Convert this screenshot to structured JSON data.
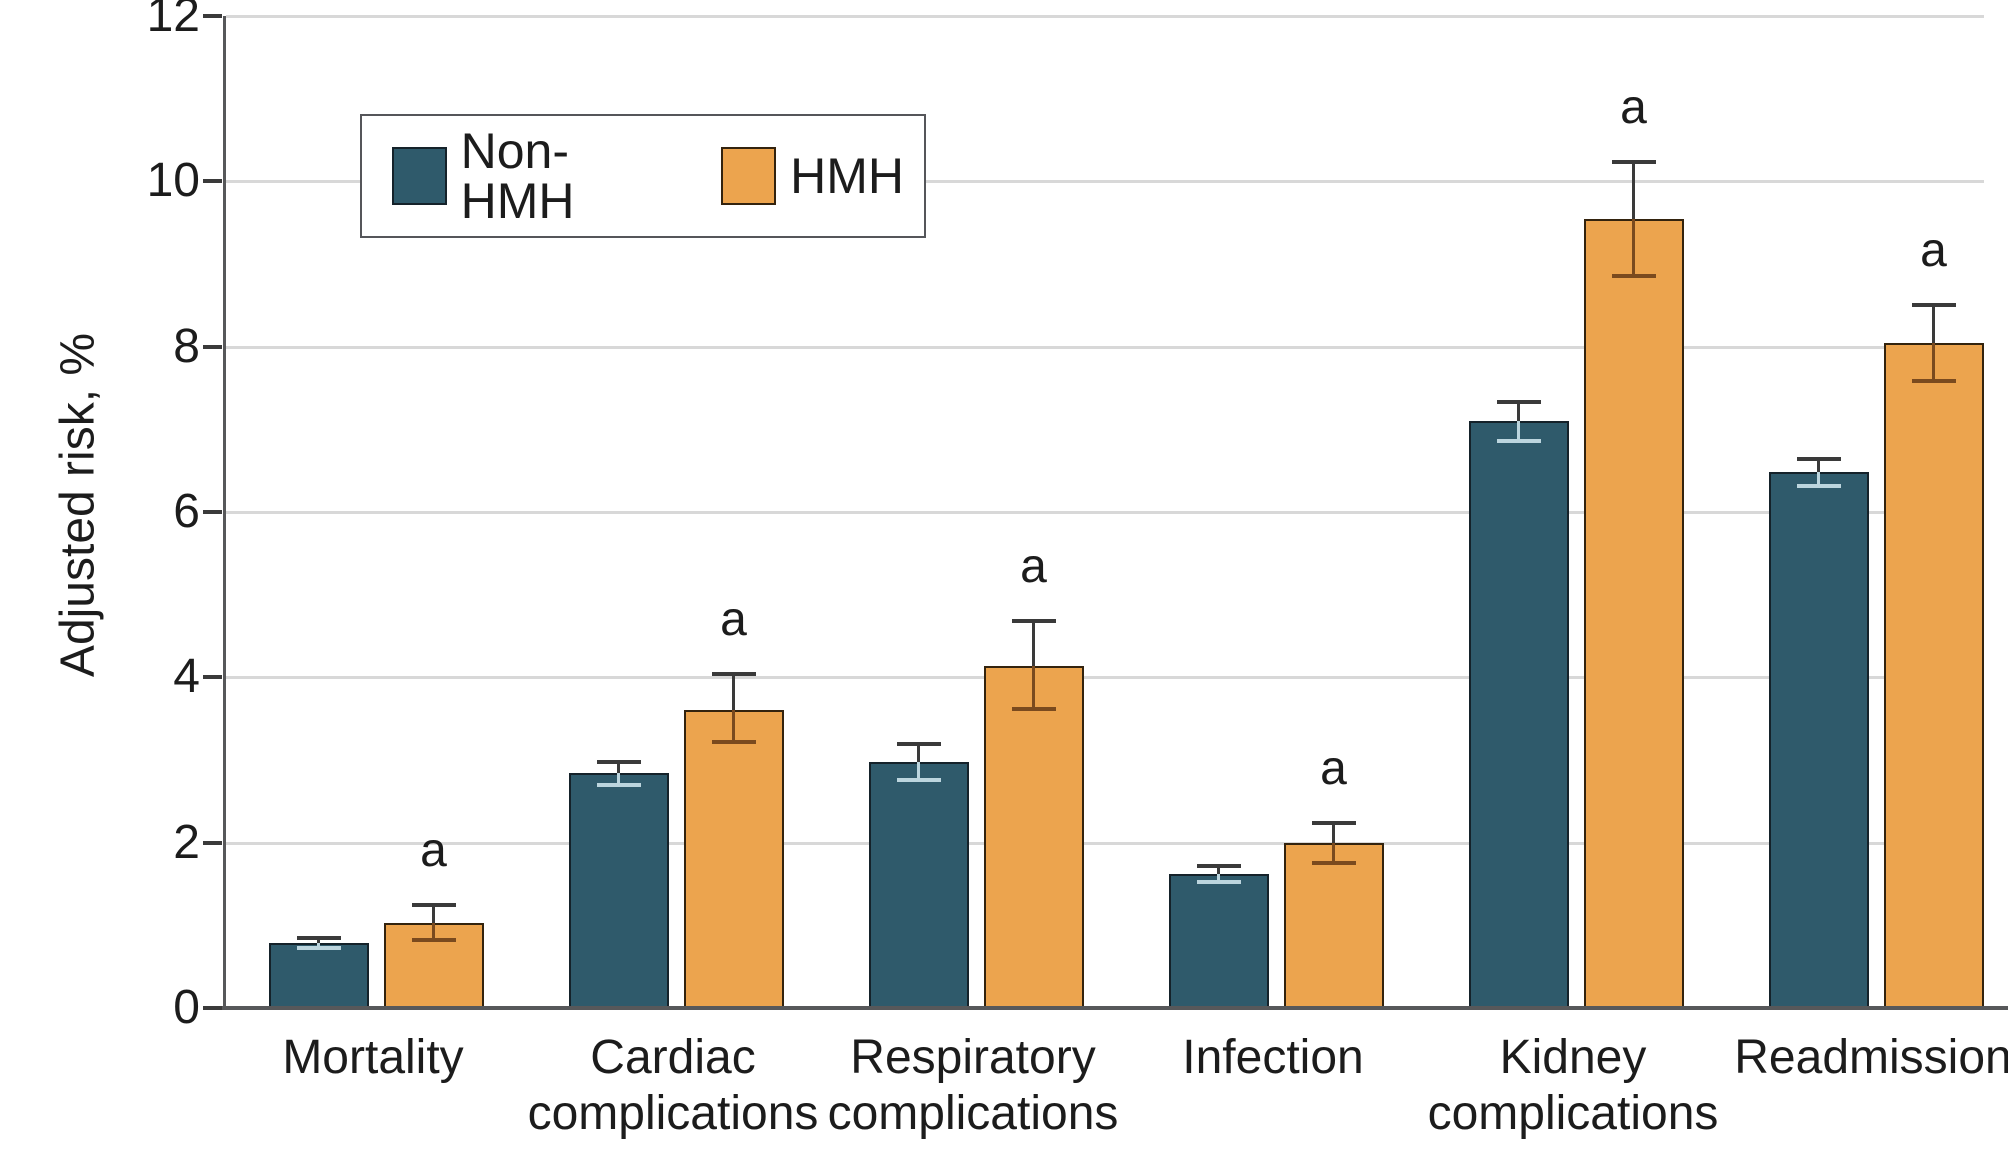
{
  "chart_data": {
    "type": "bar",
    "title": "",
    "xlabel": "",
    "ylabel": "Adjusted risk, %",
    "ylim": [
      0,
      12
    ],
    "yticks": [
      0,
      2,
      4,
      6,
      8,
      10,
      12
    ],
    "grid": "horizontal",
    "gridline_color": "#d8d8d8",
    "axis_color": "#57585a",
    "tick_color": "#3a3a3a",
    "text_color": "#1c1c1c",
    "whisker_color": "#3a3a3a",
    "legend_position": "top-left-inside",
    "categories": [
      "Mortality",
      "Cardiac complications",
      "Respiratory complications",
      "Infection",
      "Kidney complications",
      "Readmission"
    ],
    "category_label_lines": [
      [
        "Mortality"
      ],
      [
        "Cardiac",
        "complications"
      ],
      [
        "Respiratory",
        "complications"
      ],
      [
        "Infection"
      ],
      [
        "Kidney",
        "complications"
      ],
      [
        "Readmission"
      ]
    ],
    "series": [
      {
        "name": "Non-HMH",
        "color": "#2f5a6b",
        "edge_color": "#15222a",
        "inner_whisker_color": "#bcd5de",
        "values": [
          0.79,
          2.84,
          2.97,
          1.62,
          7.1,
          6.48
        ],
        "err_low": [
          0.73,
          2.7,
          2.76,
          1.52,
          6.86,
          6.31
        ],
        "err_high": [
          0.85,
          2.98,
          3.19,
          1.72,
          7.33,
          6.64
        ],
        "sig": [
          "",
          "",
          "",
          "",
          "",
          ""
        ]
      },
      {
        "name": "HMH",
        "color": "#eca44e",
        "edge_color": "#33230e",
        "inner_whisker_color": "#7a4a1e",
        "values": [
          1.03,
          3.61,
          4.14,
          2.0,
          9.54,
          8.05
        ],
        "err_low": [
          0.82,
          3.22,
          3.62,
          1.76,
          8.85,
          7.58
        ],
        "err_high": [
          1.25,
          4.04,
          4.68,
          2.24,
          10.23,
          8.5
        ],
        "sig": [
          "a",
          "a",
          "a",
          "a",
          "a",
          "a"
        ]
      }
    ]
  }
}
